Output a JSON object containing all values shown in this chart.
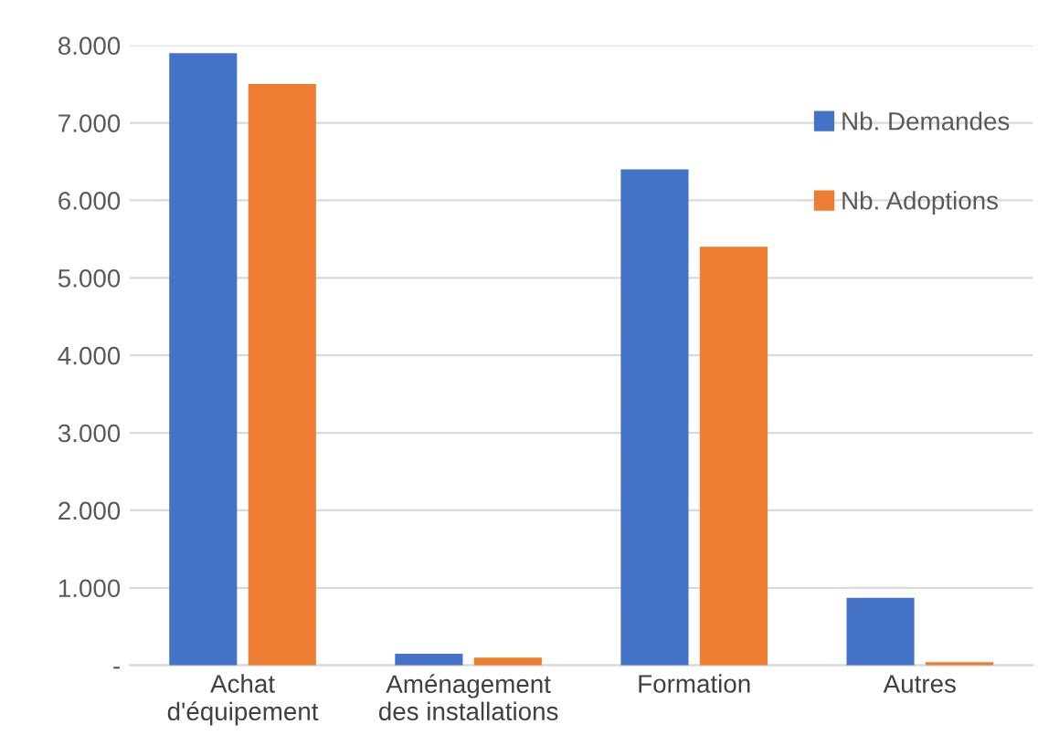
{
  "chart_data": {
    "type": "bar",
    "categories": [
      "Achat\nd'équipement",
      "Aménagement\ndes installations",
      "Formation",
      "Autres"
    ],
    "series": [
      {
        "name": "Nb. Demandes",
        "color": "#4472c4",
        "values": [
          7900,
          150,
          6400,
          870
        ]
      },
      {
        "name": "Nb. Adoptions",
        "color": "#ed7d31",
        "values": [
          7500,
          100,
          5400,
          40
        ]
      }
    ],
    "ylim": [
      0,
      8000
    ],
    "yticks": [
      {
        "value": 0,
        "label": "-"
      },
      {
        "value": 1000,
        "label": "1.000"
      },
      {
        "value": 2000,
        "label": "2.000"
      },
      {
        "value": 3000,
        "label": "3.000"
      },
      {
        "value": 4000,
        "label": "4.000"
      },
      {
        "value": 5000,
        "label": "5.000"
      },
      {
        "value": 6000,
        "label": "6.000"
      },
      {
        "value": 7000,
        "label": "7.000"
      },
      {
        "value": 8000,
        "label": "8.000"
      }
    ],
    "grid": "y",
    "legend": "top right"
  }
}
